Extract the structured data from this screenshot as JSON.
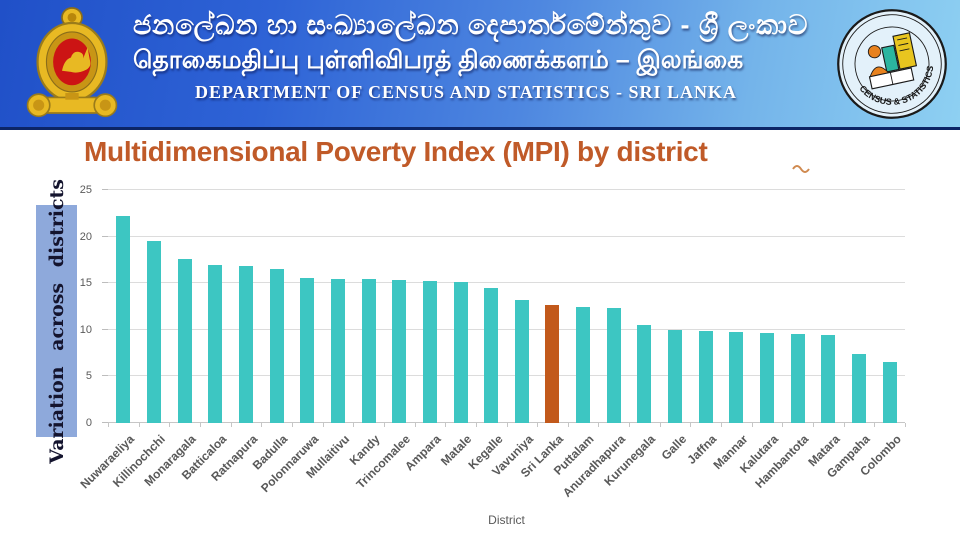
{
  "header": {
    "title_sinhala": "ජනලේඛන හා සංඛ්‍යාලේඛන දෙපාර්තමේන්තුව - ශ්‍රී ලංකාව",
    "title_tamil": "தொகைமதிப்பு புள்ளிவிபரத் திணைக்களம் – இலங்கை",
    "title_english": "DEPARTMENT OF CENSUS AND STATISTICS - SRI LANKA",
    "seal_text": "CENSUS & STATISTICS"
  },
  "page_title": "Multidimensional Poverty Index (MPI) by district",
  "chart_data": {
    "type": "bar",
    "title": "Multidimensional Poverty Index (MPI) by district",
    "xlabel": "District",
    "ylabel": "Variation across districts",
    "ylim": [
      0,
      25
    ],
    "yticks": [
      0,
      5,
      10,
      15,
      20,
      25
    ],
    "grid": true,
    "legend": "none",
    "bar_color": "#3DC6C2",
    "highlight_color": "#C2591B",
    "highlight_category": "Sri Lanka",
    "categories": [
      "Nuwaraeliya",
      "Killinochchi",
      "Monaragala",
      "Batticaloa",
      "Ratnapura",
      "Badulla",
      "Polonnaruwa",
      "Mullaitivu",
      "Kandy",
      "Trincomalee",
      "Ampara",
      "Matale",
      "Kegalle",
      "Vavuniya",
      "Sri Lanka",
      "Puttalam",
      "Anuradhapura",
      "Kurunegala",
      "Galle",
      "Jaffna",
      "Mannar",
      "Kalutara",
      "Hambantota",
      "Matara",
      "Gampaha",
      "Colombo"
    ],
    "values": [
      22.2,
      19.5,
      17.6,
      17.0,
      16.8,
      16.5,
      15.6,
      15.5,
      15.4,
      15.3,
      15.2,
      15.1,
      14.5,
      13.2,
      12.7,
      12.4,
      12.3,
      10.5,
      10.0,
      9.9,
      9.8,
      9.7,
      9.6,
      9.4,
      7.4,
      6.6
    ]
  },
  "colors": {
    "header_gradient_start": "#2050C8",
    "header_gradient_end": "#8ED0F2",
    "header_underline": "#0C2566",
    "title_text": "#C05A28",
    "ylabel_box": "#8EA9DB",
    "gridline": "#DCDCDC",
    "tick_text": "#595959"
  }
}
